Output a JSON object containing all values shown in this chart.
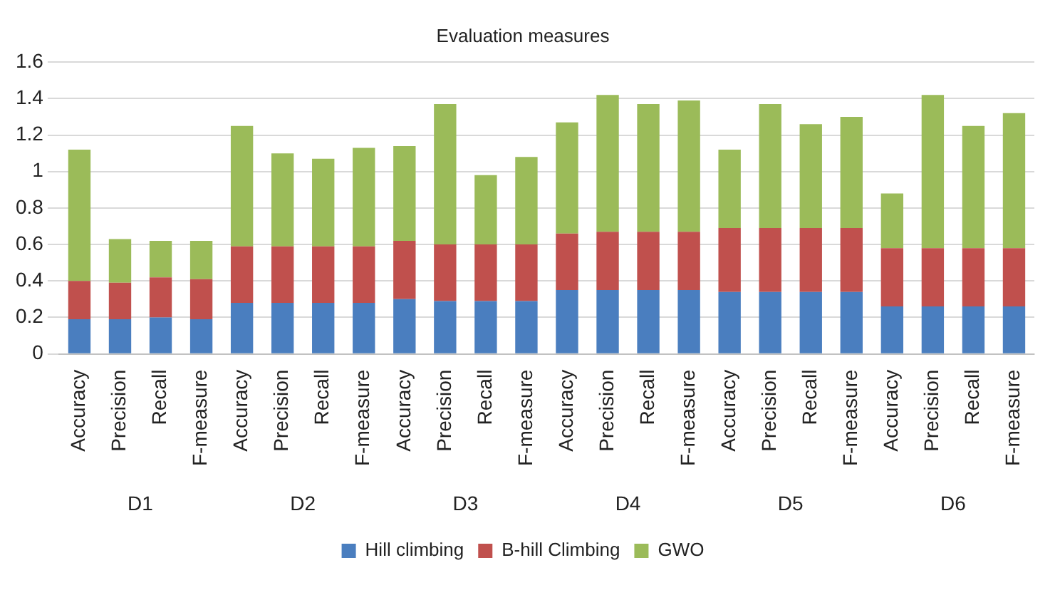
{
  "chart_data": {
    "type": "bar",
    "title": "Evaluation measures",
    "stacked": true,
    "categories": [
      "Accuracy",
      "Precision",
      "Recall",
      "F-measure",
      "Accuracy",
      "Precision",
      "Recall",
      "F-measure",
      "Accuracy",
      "Precision",
      "Recall",
      "F-measure",
      "Accuracy",
      "Precision",
      "Recall",
      "F-measure",
      "Accuracy",
      "Precision",
      "Recall",
      "F-measure",
      "Accuracy",
      "Precision",
      "Recall",
      "F-measure"
    ],
    "series": [
      {
        "name": "Hill climbing",
        "color": "#4a7ebf",
        "values": [
          0.19,
          0.19,
          0.2,
          0.19,
          0.28,
          0.28,
          0.28,
          0.28,
          0.3,
          0.29,
          0.29,
          0.29,
          0.35,
          0.35,
          0.35,
          0.35,
          0.34,
          0.34,
          0.34,
          0.34,
          0.26,
          0.26,
          0.26,
          0.26
        ]
      },
      {
        "name": "B-hill Climbing",
        "color": "#c0504d",
        "values": [
          0.21,
          0.2,
          0.22,
          0.22,
          0.31,
          0.31,
          0.31,
          0.31,
          0.32,
          0.31,
          0.31,
          0.31,
          0.31,
          0.32,
          0.32,
          0.32,
          0.35,
          0.35,
          0.35,
          0.35,
          0.32,
          0.32,
          0.32,
          0.32
        ]
      },
      {
        "name": "GWO",
        "color": "#9bbb59",
        "values": [
          0.72,
          0.24,
          0.2,
          0.21,
          0.66,
          0.51,
          0.48,
          0.54,
          0.52,
          0.77,
          0.38,
          0.48,
          0.61,
          0.75,
          0.7,
          0.72,
          0.43,
          0.68,
          0.57,
          0.61,
          0.3,
          0.84,
          0.67,
          0.74
        ]
      }
    ],
    "annotations": [
      "D1",
      "D2",
      "D3",
      "D4",
      "D5",
      "D6"
    ],
    "ylim": [
      0,
      1.6
    ],
    "yticks": [
      0,
      0.2,
      0.4,
      0.6,
      0.8,
      1,
      1.2,
      1.4,
      1.6
    ],
    "grid": "y",
    "legend": "bottom"
  }
}
